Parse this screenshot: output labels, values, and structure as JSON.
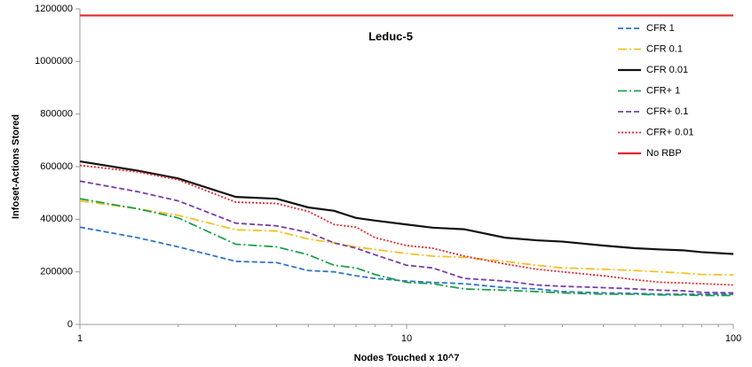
{
  "chart_data": {
    "type": "line",
    "title": "Leduc-5",
    "xlabel": "Nodes Touched x 10^7",
    "ylabel": "Infoset-Actions Stored",
    "xscale": "log",
    "xlim": [
      1,
      100
    ],
    "xticks": [
      1,
      10,
      100
    ],
    "ylim": [
      0,
      1200000
    ],
    "yticks": [
      0,
      200000,
      400000,
      600000,
      800000,
      1000000,
      1200000
    ],
    "grid": false,
    "legend": "upper right",
    "x": [
      1,
      1.5,
      2,
      3,
      4,
      5,
      6,
      7,
      8,
      10,
      12,
      15,
      20,
      25,
      30,
      40,
      50,
      60,
      70,
      80,
      100
    ],
    "series": [
      {
        "name": "CFR 1",
        "color": "#2e75c6",
        "style": "dashed",
        "values": [
          370000,
          330000,
          295000,
          240000,
          235000,
          205000,
          200000,
          185000,
          175000,
          165000,
          160000,
          155000,
          140000,
          135000,
          125000,
          120000,
          118000,
          115000,
          115000,
          115000,
          115000
        ]
      },
      {
        "name": "CFR 0.1",
        "color": "#f5c022",
        "style": "dashdot",
        "values": [
          470000,
          440000,
          415000,
          360000,
          355000,
          325000,
          310000,
          295000,
          285000,
          270000,
          260000,
          255000,
          240000,
          225000,
          215000,
          210000,
          205000,
          200000,
          195000,
          190000,
          188000
        ]
      },
      {
        "name": "CFR 0.01",
        "color": "#111111",
        "style": "solid",
        "values": [
          620000,
          585000,
          555000,
          485000,
          478000,
          445000,
          432000,
          405000,
          395000,
          380000,
          368000,
          362000,
          330000,
          320000,
          315000,
          300000,
          290000,
          285000,
          282000,
          275000,
          268000
        ]
      },
      {
        "name": "CFR+ 1",
        "color": "#1fa14a",
        "style": "dashdot",
        "values": [
          478000,
          440000,
          405000,
          305000,
          295000,
          265000,
          225000,
          215000,
          190000,
          160000,
          155000,
          135000,
          130000,
          125000,
          120000,
          115000,
          115000,
          112000,
          112000,
          110000,
          110000
        ]
      },
      {
        "name": "CFR+ 0.1",
        "color": "#7a3fa8",
        "style": "dashed",
        "values": [
          545000,
          505000,
          470000,
          385000,
          375000,
          350000,
          310000,
          290000,
          265000,
          225000,
          215000,
          175000,
          165000,
          150000,
          145000,
          140000,
          135000,
          130000,
          128000,
          122000,
          120000
        ]
      },
      {
        "name": "CFR+ 0.01",
        "color": "#e8262a",
        "style": "dotted",
        "values": [
          605000,
          580000,
          550000,
          465000,
          460000,
          430000,
          380000,
          370000,
          330000,
          300000,
          290000,
          260000,
          230000,
          210000,
          200000,
          185000,
          170000,
          160000,
          158000,
          155000,
          150000
        ]
      },
      {
        "name": "No RBP",
        "color": "#e8262a",
        "style": "solid",
        "values": [
          1175000,
          1175000,
          1175000,
          1175000,
          1175000,
          1175000,
          1175000,
          1175000,
          1175000,
          1175000,
          1175000,
          1175000,
          1175000,
          1175000,
          1175000,
          1175000,
          1175000,
          1175000,
          1175000,
          1175000,
          1175000
        ]
      }
    ]
  }
}
